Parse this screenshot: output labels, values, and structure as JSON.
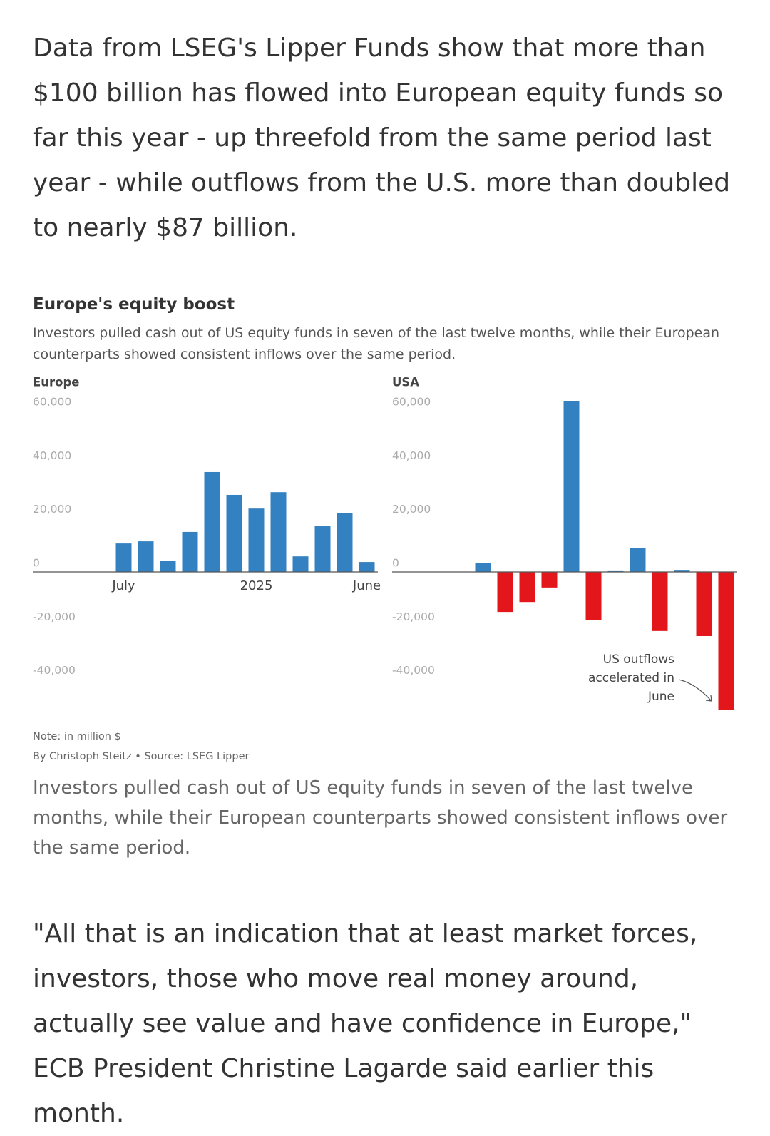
{
  "article": {
    "intro": "Data from LSEG's Lipper Funds show that more than $100 billion has flowed into European equity funds so far this year - up threefold from the same period last year - while outflows from the U.S. more than doubled to nearly $87 billion.",
    "figure": {
      "title": "Europe's equity boost",
      "subtitle": "Investors pulled cash out of US equity funds in seven of the last twelve months, while their European counterparts showed consistent inflows over the same period.",
      "note": "Note: in million $",
      "byline": "By Christoph Steitz • Source: LSEG Lipper"
    },
    "caption": "Investors pulled cash out of US equity funds in seven of the last twelve months, while their European counterparts showed consistent inflows over the same period.",
    "quote": "\"All that is an indication that at least market forces, investors, those who move real money around, actually see value and have confidence in Europe,\" ECB President Christine Lagarde said earlier this month."
  },
  "chart_data": [
    {
      "type": "bar",
      "title": "Europe",
      "categories": [
        "July",
        null,
        null,
        null,
        null,
        null,
        "2025",
        null,
        null,
        null,
        null,
        "June"
      ],
      "values": [
        10600,
        11400,
        4000,
        14900,
        37200,
        28700,
        23600,
        29700,
        5800,
        17000,
        21800,
        3700
      ],
      "color": "#3381c1",
      "negative_color": "#e3161b",
      "ylim": [
        -52000,
        65000
      ],
      "yticks": [
        {
          "value": 60000,
          "label": "60,000"
        },
        {
          "value": 40000,
          "label": "40,000"
        },
        {
          "value": 20000,
          "label": "20,000"
        },
        0,
        {
          "value": -20000,
          "label": "-20,000"
        },
        {
          "value": -40000,
          "label": "-40,000"
        }
      ],
      "grid": false
    },
    {
      "type": "bar",
      "title": "USA",
      "categories": [
        null,
        null,
        null,
        null,
        null,
        null,
        null,
        null,
        null,
        null,
        null,
        null
      ],
      "values": [
        3200,
        -14900,
        -11200,
        -5800,
        63700,
        -17800,
        300,
        9000,
        -22000,
        500,
        -23900,
        -51500
      ],
      "color": "#3381c1",
      "negative_color": "#e3161b",
      "ylim": [
        -52000,
        65000
      ],
      "yticks": [
        {
          "value": 60000,
          "label": "60,000"
        },
        {
          "value": 40000,
          "label": "40,000"
        },
        {
          "value": 20000,
          "label": "20,000"
        },
        0,
        {
          "value": -20000,
          "label": "-20,000"
        },
        {
          "value": -40000,
          "label": "-40,000"
        }
      ],
      "grid": false,
      "annotation": "US outflows accelerated in June"
    }
  ]
}
